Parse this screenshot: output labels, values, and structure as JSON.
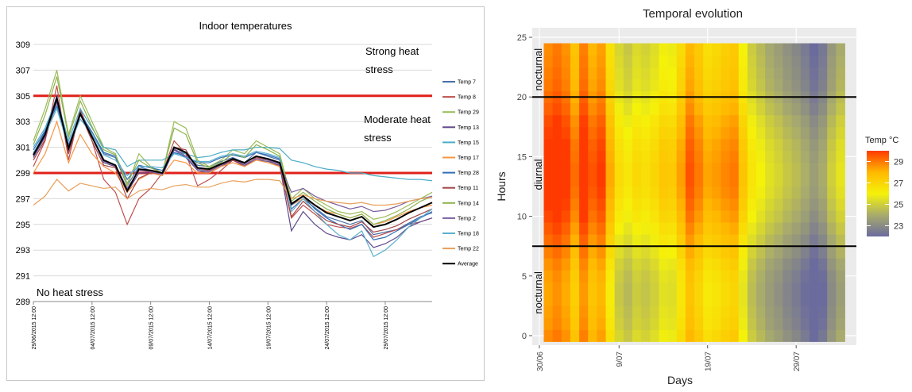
{
  "chart_data": [
    {
      "type": "line",
      "title": "Indoor temperatures",
      "xlabel": "",
      "ylabel": "",
      "ylim": [
        289,
        309
      ],
      "yticks": [
        289,
        291,
        293,
        295,
        297,
        299,
        301,
        303,
        305,
        307,
        309
      ],
      "xtick_labels": [
        "29/06/2015 12:00",
        "04/07/2015 12:00",
        "09/07/2015 12:00",
        "14/07/2015 12:00",
        "19/07/2015 12:00",
        "24/07/2015 12:00",
        "29/07/2015 12:00"
      ],
      "xrange_days": [
        0,
        34
      ],
      "grid": "horizontal",
      "legend_position": "right",
      "thresholds": [
        {
          "value": 305,
          "color": "#e0201a"
        },
        {
          "value": 299,
          "color": "#e0201a"
        }
      ],
      "annotations": {
        "strong": "Strong heat stress",
        "moderate": "Moderate heat stress",
        "none": "No heat stress"
      },
      "series": [
        {
          "name": "Temp 7",
          "color": "#4a6fa8",
          "values": [
            300.5,
            302.2,
            305.0,
            301.0,
            303.8,
            302.0,
            300.5,
            300.2,
            298.0,
            299.5,
            299.2,
            299.0,
            300.8,
            300.5,
            299.6,
            299.5,
            299.9,
            300.2,
            299.8,
            300.6,
            300.3,
            300.0,
            296.2,
            297.0,
            296.3,
            295.6,
            295.3,
            295.0,
            295.3,
            294.2,
            294.4,
            294.6,
            295.1,
            295.6,
            295.9
          ]
        },
        {
          "name": "Temp 8",
          "color": "#c0504d",
          "values": [
            299.5,
            301.5,
            305.8,
            300.0,
            304.0,
            301.5,
            298.5,
            297.5,
            295.0,
            297.0,
            297.8,
            299.0,
            301.5,
            300.5,
            298.0,
            298.5,
            299.2,
            300.0,
            299.5,
            300.2,
            300.0,
            299.5,
            295.5,
            296.5,
            295.8,
            295.0,
            294.8,
            294.7,
            295.0,
            294.0,
            294.3,
            294.6,
            295.0,
            295.2,
            295.5
          ]
        },
        {
          "name": "Temp 29",
          "color": "#9bbb59",
          "values": [
            301.5,
            304.0,
            307.0,
            302.0,
            305.0,
            303.0,
            301.0,
            300.5,
            298.0,
            300.5,
            299.5,
            299.0,
            303.0,
            302.5,
            300.0,
            299.5,
            300.0,
            300.8,
            300.5,
            301.5,
            301.0,
            300.5,
            297.0,
            297.8,
            297.0,
            296.5,
            296.0,
            295.8,
            296.0,
            295.4,
            295.6,
            296.0,
            296.5,
            297.0,
            297.5
          ]
        },
        {
          "name": "Temp 13",
          "color": "#5f4a8b",
          "values": [
            300.2,
            301.8,
            304.5,
            300.8,
            303.5,
            301.8,
            299.8,
            299.5,
            297.5,
            299.0,
            299.0,
            298.8,
            300.8,
            300.2,
            299.2,
            299.0,
            299.5,
            300.0,
            299.6,
            300.0,
            299.9,
            299.6,
            294.5,
            296.0,
            295.0,
            294.3,
            294.0,
            293.8,
            294.2,
            293.2,
            293.5,
            294.0,
            294.8,
            295.2,
            295.5
          ]
        },
        {
          "name": "Temp 15",
          "color": "#4bacc6",
          "values": [
            301.0,
            302.5,
            304.8,
            301.5,
            304.0,
            302.5,
            301.0,
            300.8,
            299.5,
            300.0,
            300.0,
            300.0,
            300.5,
            300.5,
            300.2,
            300.3,
            300.6,
            300.8,
            300.8,
            301.0,
            301.0,
            300.9,
            300.0,
            299.8,
            299.5,
            299.3,
            299.2,
            299.0,
            299.0,
            298.8,
            298.7,
            298.6,
            298.5,
            298.5,
            298.4
          ]
        },
        {
          "name": "Temp 17",
          "color": "#f79646",
          "values": [
            299.0,
            300.5,
            303.0,
            299.8,
            302.0,
            300.5,
            299.5,
            299.0,
            297.5,
            298.5,
            299.0,
            298.8,
            300.0,
            299.8,
            299.0,
            299.0,
            299.5,
            299.8,
            299.5,
            300.0,
            299.8,
            299.5,
            296.5,
            297.0,
            296.5,
            296.0,
            295.8,
            295.5,
            295.8,
            295.0,
            295.2,
            295.6,
            296.0,
            296.3,
            296.5
          ]
        },
        {
          "name": "Temp 28",
          "color": "#2f6fb8",
          "values": [
            300.8,
            302.3,
            304.2,
            301.2,
            303.6,
            302.2,
            300.6,
            300.3,
            298.5,
            299.6,
            299.4,
            299.2,
            300.6,
            300.3,
            299.8,
            299.8,
            300.2,
            300.4,
            300.2,
            300.6,
            300.4,
            300.1,
            296.5,
            297.2,
            296.2,
            295.5,
            295.0,
            294.6,
            295.0,
            293.8,
            294.0,
            294.5,
            295.0,
            295.5,
            296.0
          ]
        },
        {
          "name": "Temp 11",
          "color": "#a5464a",
          "values": [
            300.0,
            301.6,
            304.8,
            300.5,
            303.6,
            301.5,
            299.6,
            299.4,
            297.0,
            298.6,
            299.0,
            299.0,
            301.0,
            300.8,
            299.3,
            299.2,
            299.6,
            300.0,
            299.7,
            300.1,
            300.0,
            299.7,
            295.6,
            296.8,
            296.0,
            295.3,
            295.0,
            294.8,
            295.2,
            294.4,
            294.6,
            294.9,
            295.4,
            295.8,
            296.2
          ]
        },
        {
          "name": "Temp 14",
          "color": "#8fb24f",
          "values": [
            301.2,
            303.5,
            306.5,
            301.8,
            304.6,
            302.6,
            300.8,
            300.4,
            298.2,
            300.0,
            299.4,
            299.0,
            302.5,
            302.0,
            299.8,
            299.4,
            299.8,
            300.5,
            300.2,
            301.2,
            300.8,
            300.3,
            296.8,
            297.5,
            296.8,
            296.2,
            295.8,
            295.5,
            295.8,
            295.0,
            295.3,
            295.7,
            296.2,
            296.8,
            297.2
          ]
        },
        {
          "name": "Temp 2",
          "color": "#7d60a0",
          "values": [
            300.3,
            301.9,
            304.6,
            300.9,
            303.6,
            301.9,
            299.9,
            299.6,
            297.8,
            299.2,
            299.1,
            298.9,
            300.9,
            300.3,
            299.3,
            299.1,
            299.6,
            300.1,
            299.7,
            300.1,
            300.0,
            299.7,
            297.5,
            297.8,
            297.2,
            296.8,
            296.5,
            296.2,
            296.4,
            296.0,
            296.1,
            296.4,
            296.8,
            297.0,
            297.2
          ]
        },
        {
          "name": "Temp 18",
          "color": "#5cb0d0",
          "values": [
            300.6,
            302.0,
            304.0,
            301.0,
            303.2,
            302.0,
            300.4,
            300.0,
            298.8,
            299.5,
            299.5,
            299.4,
            300.5,
            300.2,
            299.9,
            299.9,
            300.3,
            300.5,
            300.3,
            300.7,
            300.5,
            300.2,
            296.0,
            297.0,
            296.0,
            295.0,
            294.2,
            293.8,
            294.5,
            292.5,
            293.0,
            293.8,
            294.8,
            295.5,
            296.2
          ]
        },
        {
          "name": "Temp 22",
          "color": "#e8a05a",
          "values": [
            296.5,
            297.2,
            298.5,
            297.6,
            298.2,
            298.0,
            297.8,
            297.9,
            297.0,
            297.6,
            297.8,
            297.7,
            298.0,
            298.1,
            297.9,
            297.9,
            298.2,
            298.4,
            298.3,
            298.5,
            298.5,
            298.4,
            297.0,
            297.3,
            297.0,
            296.8,
            296.7,
            296.6,
            296.7,
            296.5,
            296.5,
            296.6,
            296.8,
            297.0,
            297.1
          ]
        },
        {
          "name": "Average",
          "color": "#000000",
          "values": [
            300.4,
            302.0,
            304.8,
            300.9,
            303.6,
            301.8,
            300.0,
            299.6,
            297.6,
            299.3,
            299.2,
            299.0,
            301.0,
            300.6,
            299.4,
            299.3,
            299.7,
            300.1,
            299.8,
            300.3,
            300.1,
            299.8,
            296.6,
            297.2,
            296.5,
            295.9,
            295.6,
            295.3,
            295.6,
            294.8,
            295.0,
            295.4,
            295.9,
            296.3,
            296.7
          ]
        }
      ]
    },
    {
      "type": "heatmap",
      "title": "Temporal evolution",
      "xlabel": "Days",
      "ylabel": "Hours",
      "x_start_day": 1,
      "x_end_day": 35,
      "xtick_labels": [
        "30/06",
        "9/07",
        "19/07",
        "29/07"
      ],
      "xtick_days": [
        0,
        9,
        19,
        29
      ],
      "ylim": [
        0,
        25
      ],
      "yticks": [
        0,
        5,
        10,
        15,
        20,
        25
      ],
      "hlines": [
        7.5,
        20
      ],
      "band_labels": [
        "nocturnal",
        "diurnal",
        "nocturnal"
      ],
      "grid": "on",
      "legend_position": "right",
      "legend_title": "Temp °C",
      "legend_ticks": [
        23,
        25,
        27,
        29
      ],
      "color_range": [
        22,
        30
      ],
      "color_stops": [
        "#6b6b9e",
        "#a8ab6c",
        "#f5f20a",
        "#ffb800",
        "#ff3a00"
      ],
      "day_values": [
        29.3,
        29.6,
        29.2,
        28.2,
        29.5,
        28.6,
        29.0,
        27.2,
        25.8,
        25.4,
        25.9,
        25.7,
        26.0,
        26.5,
        26.4,
        27.4,
        28.6,
        28.0,
        27.3,
        27.5,
        27.8,
        28.0,
        26.6,
        25.5,
        25.0,
        24.5,
        24.2,
        23.8,
        23.5,
        23.1,
        22.6,
        23.0,
        24.0,
        24.6
      ],
      "hour_offsets": [
        -0.6,
        -0.8,
        -0.9,
        -1.0,
        -1.0,
        -0.9,
        -0.7,
        -0.4,
        -0.1,
        0.2,
        0.5,
        0.7,
        0.9,
        1.0,
        1.0,
        0.9,
        0.8,
        0.6,
        0.4,
        0.1,
        -0.1,
        -0.3,
        -0.4,
        -0.5,
        -0.6
      ]
    }
  ]
}
